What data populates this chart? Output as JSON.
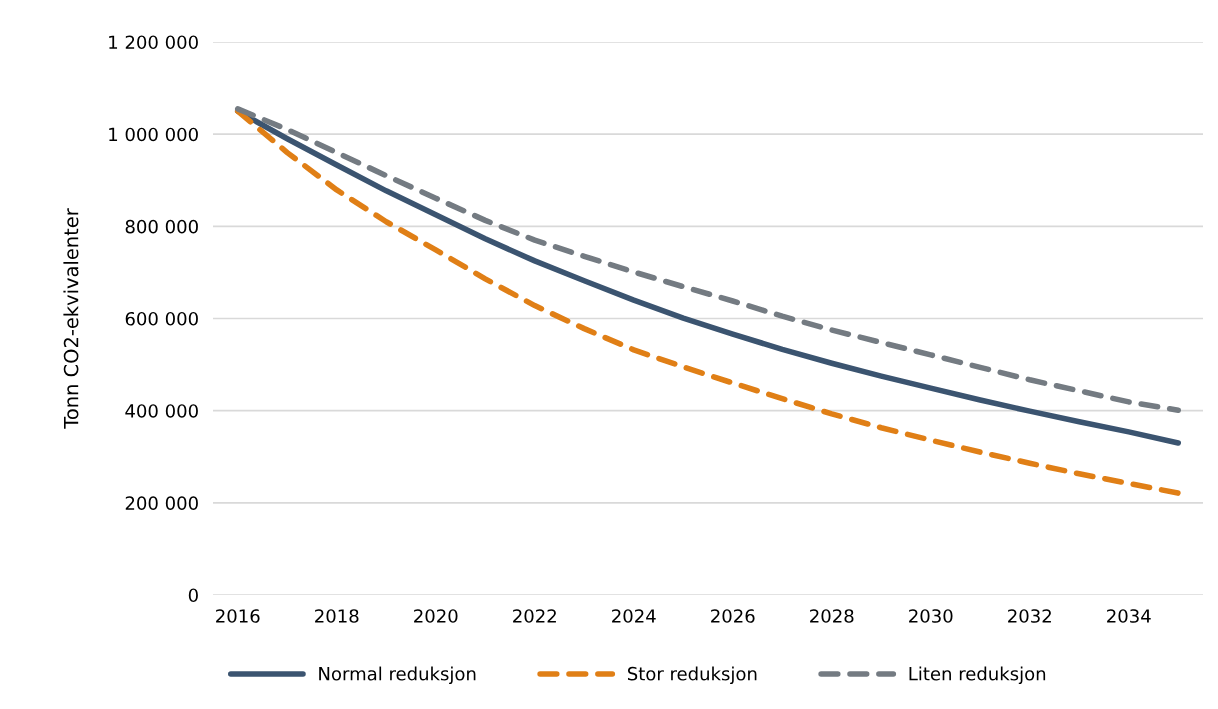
{
  "chart_data": {
    "type": "line",
    "ylabel": "Tonn CO2-ekvivalenter",
    "x": [
      2016,
      2017,
      2018,
      2019,
      2020,
      2021,
      2022,
      2023,
      2024,
      2025,
      2026,
      2027,
      2028,
      2029,
      2030,
      2031,
      2032,
      2033,
      2034,
      2035
    ],
    "series": [
      {
        "name": "Normal reduksjon",
        "color": "#3b5470",
        "line_style": "solid",
        "values": [
          1050000,
          990000,
          933000,
          877000,
          825000,
          773000,
          725000,
          682000,
          640000,
          601000,
          566000,
          533000,
          503000,
          475000,
          449000,
          423000,
          399000,
          376000,
          354000,
          330000
        ]
      },
      {
        "name": "Stor reduksjon",
        "color": "#e07f16",
        "line_style": "dashed",
        "values": [
          1050000,
          960000,
          879000,
          810000,
          749000,
          686000,
          628000,
          578000,
          532000,
          495000,
          460000,
          426000,
          393000,
          363000,
          336000,
          310000,
          286000,
          263000,
          242000,
          221000
        ]
      },
      {
        "name": "Liten reduksjon",
        "color": "#747b82",
        "line_style": "dashed",
        "values": [
          1055000,
          1010000,
          960000,
          910000,
          861000,
          813000,
          770000,
          735000,
          701000,
          669000,
          638000,
          605000,
          575000,
          548000,
          521000,
          494000,
          467000,
          443000,
          419000,
          401000
        ]
      }
    ],
    "xlim": [
      2015.5,
      2035.5
    ],
    "xticks": [
      2016,
      2018,
      2020,
      2022,
      2024,
      2026,
      2028,
      2030,
      2032,
      2034
    ],
    "ylim": [
      0,
      1200000
    ],
    "yticks": [
      {
        "value": 0,
        "label": "0"
      },
      {
        "value": 200000,
        "label": "200 000"
      },
      {
        "value": 400000,
        "label": "400 000"
      },
      {
        "value": 600000,
        "label": "600 000"
      },
      {
        "value": 800000,
        "label": "800 000"
      },
      {
        "value": 1000000,
        "label": "1 000 000"
      },
      {
        "value": 1200000,
        "label": "1 200 000"
      }
    ],
    "grid": "y",
    "legend": "bottom",
    "marker": "none"
  }
}
